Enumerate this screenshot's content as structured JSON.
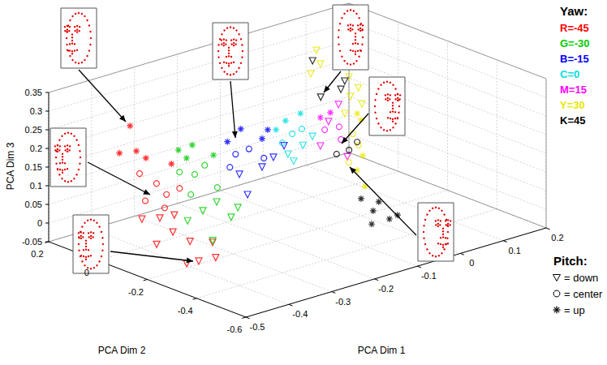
{
  "chart_data": {
    "type": "scatter3d",
    "xlabel": "PCA Dim 1",
    "ylabel": "PCA Dim 2",
    "zlabel": "PCA Dim 3",
    "xlim": [
      -0.5,
      0.2
    ],
    "xticks": [
      -0.5,
      -0.4,
      -0.3,
      -0.2,
      -0.1,
      0,
      0.1,
      0.2
    ],
    "ylim": [
      -0.6,
      0.2
    ],
    "yticks": [
      -0.6,
      -0.4,
      -0.2,
      0,
      0.2
    ],
    "zlim": [
      -0.05,
      0.35
    ],
    "zticks": [
      -0.05,
      0,
      0.05,
      0.1,
      0.15,
      0.2,
      0.25,
      0.3,
      0.35
    ],
    "grid": true,
    "legend": "right",
    "legend_title": "Yaw:",
    "marker_legend": {
      "title": "Pitch:",
      "entries": [
        {
          "marker": "triangle-down",
          "label": "= down"
        },
        {
          "marker": "circle",
          "label": "= center"
        },
        {
          "marker": "star",
          "label": "= up"
        }
      ]
    },
    "series": [
      {
        "name": "R=-45",
        "color": "#ff0000",
        "x": [
          -0.454,
          -0.473,
          -0.445,
          -0.417,
          -0.369,
          -0.426,
          -0.398,
          -0.369,
          -0.407,
          -0.379,
          -0.35,
          -0.455,
          -0.465,
          -0.484,
          -0.437,
          -0.389,
          -0.38,
          -0.352,
          -0.408,
          -0.342,
          -0.446
        ],
        "y": [
          -0.05,
          -0.04,
          -0.06,
          -0.05,
          -0.07,
          -0.04,
          -0.06,
          -0.05,
          -0.03,
          -0.06,
          -0.07,
          -0.1,
          -0.19,
          -0.21,
          -0.2,
          -0.18,
          -0.2,
          -0.22,
          -0.2,
          -0.19,
          -0.21
        ],
        "z": [
          0.308,
          0.239,
          0.24,
          0.209,
          0.182,
          0.168,
          0.137,
          0.095,
          0.086,
          0.065,
          0.11,
          0.071,
          0.1,
          0.041,
          0.101,
          0.009,
          -0.042,
          -0.037,
          -0.039,
          -0.007,
          0.061
        ],
        "marker": [
          "star",
          "star",
          "star",
          "star",
          "star",
          "circle",
          "circle",
          "circle",
          "circle",
          "circle",
          "circle",
          "triangle-down",
          "triangle-down",
          "triangle-down",
          "triangle-down",
          "triangle-down",
          "triangle-down",
          "triangle-down",
          "triangle-down",
          "triangle-down",
          "triangle-down"
        ]
      },
      {
        "name": "G=-30",
        "color": "#00cc00",
        "x": [
          -0.37,
          -0.332,
          -0.294,
          -0.351,
          -0.379,
          -0.332,
          -0.303,
          -0.285,
          -0.341,
          -0.36,
          -0.313,
          -0.275,
          -0.237,
          -0.247,
          -0.29
        ],
        "y": [
          -0.1,
          -0.09,
          -0.11,
          -0.1,
          -0.12,
          -0.1,
          -0.09,
          -0.11,
          -0.1,
          -0.12,
          -0.1,
          -0.09,
          -0.11,
          -0.1,
          -0.1
        ],
        "z": [
          0.227,
          0.225,
          0.19,
          0.199,
          0.176,
          0.149,
          0.161,
          0.1,
          0.098,
          0.039,
          0.045,
          0.053,
          0.03,
          0.005,
          -0.043
        ],
        "marker": [
          "star",
          "star",
          "star",
          "star",
          "circle",
          "circle",
          "circle",
          "circle",
          "circle",
          "triangle-down",
          "triangle-down",
          "triangle-down",
          "triangle-down",
          "triangle-down",
          "triangle-down"
        ]
      },
      {
        "name": "B=-15",
        "color": "#0000ff",
        "x": [
          -0.227,
          -0.19,
          -0.152,
          -0.133,
          -0.208,
          -0.171,
          -0.227,
          -0.142,
          -0.199,
          -0.152,
          -0.114,
          -0.18,
          -0.095
        ],
        "y": [
          -0.05,
          -0.04,
          -0.06,
          -0.05,
          -0.05,
          -0.04,
          -0.06,
          -0.05,
          -0.05,
          -0.06,
          -0.04,
          -0.05,
          -0.05
        ],
        "z": [
          0.188,
          0.207,
          0.173,
          0.188,
          0.148,
          0.147,
          0.122,
          0.115,
          0.091,
          0.097,
          0.105,
          0.03,
          0.132
        ],
        "marker": [
          "star",
          "star",
          "star",
          "star",
          "circle",
          "circle",
          "circle",
          "circle",
          "triangle-down",
          "triangle-down",
          "triangle-down",
          "triangle-down",
          "triangle-down"
        ]
      },
      {
        "name": "C=0",
        "color": "#00e0e0",
        "x": [
          -0.085,
          -0.057,
          -0.028,
          -0.076,
          -0.047,
          -0.019,
          -0.057,
          -0.028,
          0,
          -0.038
        ],
        "y": [
          0,
          0.01,
          0,
          -0.01,
          0,
          0.01,
          0,
          -0.01,
          0,
          0.01
        ],
        "z": [
          0.159,
          0.171,
          0.183,
          0.123,
          0.135,
          0.136,
          0.084,
          0.1,
          0.112,
          0.056
        ],
        "marker": [
          "star",
          "star",
          "star",
          "circle",
          "circle",
          "circle",
          "triangle-down",
          "triangle-down",
          "triangle-down",
          "triangle-down"
        ]
      },
      {
        "name": "M=15",
        "color": "#ff00ff",
        "x": [
          0.03,
          0.059,
          0.04,
          0.068,
          0.078,
          0.078,
          0.03,
          0.087,
          0.049
        ],
        "y": [
          0.02,
          0.03,
          0.02,
          0.01,
          0.02,
          0.03,
          0.02,
          0.01,
          0.02
        ],
        "z": [
          0.147,
          0.148,
          0.111,
          0.112,
          0.072,
          0.163,
          0.071,
          0.025,
          0.13
        ],
        "marker": [
          "star",
          "star",
          "circle",
          "circle",
          "circle",
          "triangle-down",
          "triangle-down",
          "triangle-down",
          "triangle-down"
        ]
      },
      {
        "name": "Y=30",
        "color": "#e8e800",
        "x": [
          0.133,
          0.142,
          0.133,
          0.065,
          0.146,
          0.123,
          0.142,
          0.056,
          0.038,
          0.053,
          0.114,
          0.019,
          0.136,
          0.123,
          0.144,
          0.104
        ],
        "y": [
          0.05,
          0.05,
          0.05,
          -0.1,
          0.05,
          0.05,
          0.06,
          -0.05,
          0.05,
          0.06,
          0.05,
          0.04,
          0.05,
          0.06,
          0.05,
          0.05
        ],
        "z": [
          0.115,
          0.095,
          -0.037,
          -0.019,
          -0.002,
          0.064,
          0.025,
          0.036,
          0.317,
          0.273,
          0.22,
          0.263,
          0.183,
          0.162,
          0.137,
          0.125
        ],
        "marker": [
          "star",
          "star",
          "star",
          "star",
          "star",
          "circle",
          "circle",
          "circle",
          "triangle-down",
          "triangle-down",
          "triangle-down",
          "triangle-down",
          "triangle-down",
          "triangle-down",
          "triangle-down",
          "triangle-down"
        ]
      },
      {
        "name": "K=45",
        "color": "#000000",
        "x": [
          0.029,
          0.095,
          0.048,
          0.104,
          0.114,
          0.133,
          0.085,
          -0.031,
          -0.012,
          0.007,
          -0.04,
          0.026,
          -0.059
        ],
        "y": [
          0.05,
          0.05,
          0.05,
          0.05,
          0.05,
          0.05,
          0.05,
          -0.3,
          -0.29,
          -0.3,
          -0.31,
          -0.3,
          -0.3
        ],
        "z": [
          0.292,
          0.193,
          0.188,
          0.212,
          0.024,
          0.039,
          0.023,
          -0.001,
          0.014,
          -0.036,
          -0.031,
          -0.032,
          0.041
        ],
        "marker": [
          "triangle-down",
          "triangle-down",
          "triangle-down",
          "triangle-down",
          "circle",
          "circle",
          "circle",
          "star",
          "star",
          "star",
          "star",
          "star",
          "star"
        ]
      }
    ]
  }
}
